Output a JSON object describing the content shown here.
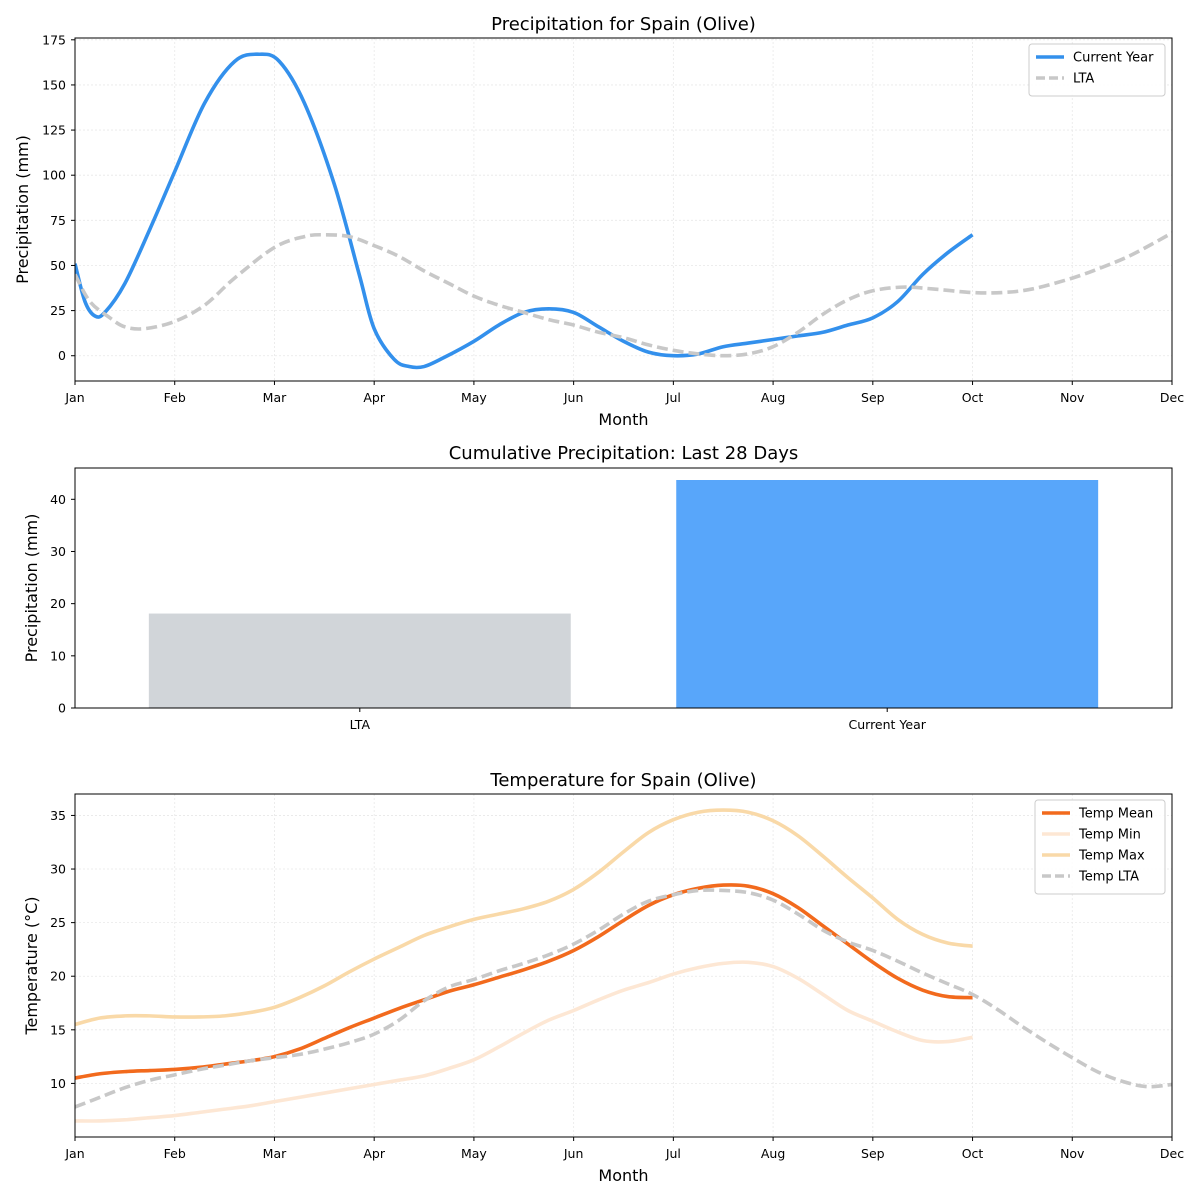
{
  "chart_data": [
    {
      "type": "line",
      "title": "Precipitation for Spain (Olive)",
      "xlabel": "Month",
      "ylabel": "Precipitation (mm)",
      "xticks": [
        "Jan",
        "Feb",
        "Mar",
        "Apr",
        "May",
        "Jun",
        "Jul",
        "Aug",
        "Sep",
        "Oct",
        "Nov",
        "Dec"
      ],
      "yticks": [
        0,
        25,
        50,
        75,
        100,
        125,
        150,
        175
      ],
      "xlim": [
        1,
        12
      ],
      "ylim": [
        -14,
        176
      ],
      "grid": true,
      "legend_position": "top-right",
      "series": [
        {
          "name": "Current Year",
          "color": "#3390ec",
          "style": "solid",
          "points": [
            [
              1,
              51
            ],
            [
              1.1,
              30
            ],
            [
              1.2,
              22
            ],
            [
              1.3,
              24
            ],
            [
              1.5,
              40
            ],
            [
              1.75,
              70
            ],
            [
              2,
              102
            ],
            [
              2.3,
              140
            ],
            [
              2.6,
              163
            ],
            [
              2.85,
              167
            ],
            [
              3.05,
              163
            ],
            [
              3.3,
              140
            ],
            [
              3.6,
              95
            ],
            [
              3.85,
              45
            ],
            [
              4,
              15
            ],
            [
              4.2,
              -2
            ],
            [
              4.35,
              -6
            ],
            [
              4.5,
              -6
            ],
            [
              4.7,
              -1
            ],
            [
              5,
              8
            ],
            [
              5.25,
              17
            ],
            [
              5.5,
              24
            ],
            [
              5.75,
              26
            ],
            [
              6,
              24
            ],
            [
              6.25,
              16
            ],
            [
              6.5,
              8
            ],
            [
              6.75,
              2
            ],
            [
              7,
              0
            ],
            [
              7.25,
              1
            ],
            [
              7.5,
              5
            ],
            [
              7.75,
              7
            ],
            [
              8,
              9
            ],
            [
              8.25,
              11
            ],
            [
              8.5,
              13
            ],
            [
              8.75,
              17
            ],
            [
              9,
              21
            ],
            [
              9.25,
              30
            ],
            [
              9.5,
              45
            ],
            [
              9.75,
              57
            ],
            [
              10,
              67
            ]
          ]
        },
        {
          "name": "LTA",
          "color": "#c8c8c8",
          "style": "dashed",
          "points": [
            [
              1,
              45
            ],
            [
              1.15,
              30
            ],
            [
              1.35,
              21
            ],
            [
              1.5,
              16
            ],
            [
              1.7,
              15
            ],
            [
              2,
              19
            ],
            [
              2.3,
              28
            ],
            [
              2.6,
              43
            ],
            [
              3,
              60
            ],
            [
              3.3,
              66
            ],
            [
              3.5,
              67
            ],
            [
              3.75,
              66
            ],
            [
              4,
              61
            ],
            [
              4.25,
              55
            ],
            [
              4.5,
              47
            ],
            [
              4.75,
              40
            ],
            [
              5,
              33
            ],
            [
              5.25,
              28
            ],
            [
              5.5,
              24
            ],
            [
              5.75,
              20
            ],
            [
              6,
              17
            ],
            [
              6.25,
              13
            ],
            [
              6.5,
              10
            ],
            [
              6.75,
              6
            ],
            [
              7,
              3
            ],
            [
              7.25,
              1
            ],
            [
              7.5,
              0
            ],
            [
              7.75,
              1
            ],
            [
              8,
              5
            ],
            [
              8.25,
              13
            ],
            [
              8.5,
              23
            ],
            [
              8.75,
              31
            ],
            [
              9,
              36
            ],
            [
              9.3,
              38
            ],
            [
              9.6,
              37
            ],
            [
              10,
              35
            ],
            [
              10.3,
              35
            ],
            [
              10.6,
              37
            ],
            [
              11,
              43
            ],
            [
              11.3,
              49
            ],
            [
              11.6,
              56
            ],
            [
              12,
              68
            ]
          ]
        }
      ]
    },
    {
      "type": "bar",
      "title": "Cumulative Precipitation: Last 28 Days",
      "xlabel": "",
      "ylabel": "Precipitation (mm)",
      "categories": [
        "LTA",
        "Current Year"
      ],
      "values": [
        18.1,
        43.7
      ],
      "colors": [
        "#d1d5d9",
        "#58a6fa"
      ],
      "yticks": [
        0,
        10,
        20,
        30,
        40
      ],
      "ylim": [
        0,
        46
      ],
      "grid": false
    },
    {
      "type": "line",
      "title": "Temperature for Spain (Olive)",
      "xlabel": "Month",
      "ylabel": "Temperature (°C)",
      "xticks": [
        "Jan",
        "Feb",
        "Mar",
        "Apr",
        "May",
        "Jun",
        "Jul",
        "Aug",
        "Sep",
        "Oct",
        "Nov",
        "Dec"
      ],
      "yticks": [
        10,
        15,
        20,
        25,
        30,
        35
      ],
      "xlim": [
        1,
        12
      ],
      "ylim": [
        5,
        37
      ],
      "grid": true,
      "legend_position": "top-right",
      "series": [
        {
          "name": "Temp Mean",
          "color": "#f26a1d",
          "style": "solid",
          "points": [
            [
              1,
              10.5
            ],
            [
              1.25,
              10.9
            ],
            [
              1.5,
              11.1
            ],
            [
              1.75,
              11.2
            ],
            [
              2,
              11.3
            ],
            [
              2.25,
              11.5
            ],
            [
              2.5,
              11.8
            ],
            [
              2.75,
              12.1
            ],
            [
              3,
              12.5
            ],
            [
              3.25,
              13.2
            ],
            [
              3.5,
              14.2
            ],
            [
              3.75,
              15.2
            ],
            [
              4,
              16.1
            ],
            [
              4.25,
              17
            ],
            [
              4.5,
              17.8
            ],
            [
              4.75,
              18.6
            ],
            [
              5,
              19.2
            ],
            [
              5.25,
              19.9
            ],
            [
              5.5,
              20.6
            ],
            [
              5.75,
              21.4
            ],
            [
              6,
              22.4
            ],
            [
              6.25,
              23.7
            ],
            [
              6.5,
              25.2
            ],
            [
              6.75,
              26.6
            ],
            [
              7,
              27.6
            ],
            [
              7.25,
              28.2
            ],
            [
              7.5,
              28.5
            ],
            [
              7.75,
              28.4
            ],
            [
              8,
              27.7
            ],
            [
              8.25,
              26.4
            ],
            [
              8.5,
              24.7
            ],
            [
              8.75,
              23
            ],
            [
              9,
              21.3
            ],
            [
              9.25,
              19.8
            ],
            [
              9.5,
              18.7
            ],
            [
              9.75,
              18.1
            ],
            [
              10,
              18
            ]
          ]
        },
        {
          "name": "Temp Min",
          "color": "#fde7d4",
          "style": "solid",
          "points": [
            [
              1,
              6.5
            ],
            [
              1.25,
              6.5
            ],
            [
              1.5,
              6.6
            ],
            [
              1.75,
              6.8
            ],
            [
              2,
              7
            ],
            [
              2.25,
              7.3
            ],
            [
              2.5,
              7.6
            ],
            [
              2.75,
              7.9
            ],
            [
              3,
              8.3
            ],
            [
              3.25,
              8.7
            ],
            [
              3.5,
              9.1
            ],
            [
              3.75,
              9.5
            ],
            [
              4,
              9.9
            ],
            [
              4.25,
              10.3
            ],
            [
              4.5,
              10.7
            ],
            [
              4.75,
              11.4
            ],
            [
              5,
              12.2
            ],
            [
              5.25,
              13.4
            ],
            [
              5.5,
              14.7
            ],
            [
              5.75,
              15.9
            ],
            [
              6,
              16.8
            ],
            [
              6.25,
              17.8
            ],
            [
              6.5,
              18.7
            ],
            [
              6.75,
              19.4
            ],
            [
              7,
              20.2
            ],
            [
              7.25,
              20.8
            ],
            [
              7.5,
              21.2
            ],
            [
              7.75,
              21.3
            ],
            [
              8,
              20.9
            ],
            [
              8.25,
              19.8
            ],
            [
              8.5,
              18.3
            ],
            [
              8.75,
              16.8
            ],
            [
              9,
              15.8
            ],
            [
              9.25,
              14.8
            ],
            [
              9.5,
              14
            ],
            [
              9.75,
              13.9
            ],
            [
              10,
              14.3
            ]
          ]
        },
        {
          "name": "Temp Max",
          "color": "#f9d9a8",
          "style": "solid",
          "points": [
            [
              1,
              15.5
            ],
            [
              1.25,
              16.1
            ],
            [
              1.5,
              16.3
            ],
            [
              1.75,
              16.3
            ],
            [
              2,
              16.2
            ],
            [
              2.25,
              16.2
            ],
            [
              2.5,
              16.3
            ],
            [
              2.75,
              16.6
            ],
            [
              3,
              17.1
            ],
            [
              3.25,
              18
            ],
            [
              3.5,
              19.1
            ],
            [
              3.75,
              20.4
            ],
            [
              4,
              21.6
            ],
            [
              4.25,
              22.7
            ],
            [
              4.5,
              23.8
            ],
            [
              4.75,
              24.6
            ],
            [
              5,
              25.3
            ],
            [
              5.25,
              25.8
            ],
            [
              5.5,
              26.3
            ],
            [
              5.75,
              27
            ],
            [
              6,
              28.1
            ],
            [
              6.25,
              29.7
            ],
            [
              6.5,
              31.6
            ],
            [
              6.75,
              33.4
            ],
            [
              7,
              34.6
            ],
            [
              7.25,
              35.3
            ],
            [
              7.5,
              35.5
            ],
            [
              7.75,
              35.3
            ],
            [
              8,
              34.5
            ],
            [
              8.25,
              33.1
            ],
            [
              8.5,
              31.2
            ],
            [
              8.75,
              29.2
            ],
            [
              9,
              27.3
            ],
            [
              9.25,
              25.3
            ],
            [
              9.5,
              23.9
            ],
            [
              9.75,
              23.1
            ],
            [
              10,
              22.8
            ]
          ]
        },
        {
          "name": "Temp LTA",
          "color": "#c8c8c8",
          "style": "dashed",
          "points": [
            [
              1,
              7.8
            ],
            [
              1.25,
              8.7
            ],
            [
              1.5,
              9.6
            ],
            [
              1.75,
              10.3
            ],
            [
              2,
              10.8
            ],
            [
              2.25,
              11.3
            ],
            [
              2.5,
              11.7
            ],
            [
              2.75,
              12.1
            ],
            [
              3,
              12.4
            ],
            [
              3.25,
              12.7
            ],
            [
              3.5,
              13.2
            ],
            [
              3.75,
              13.8
            ],
            [
              4,
              14.6
            ],
            [
              4.25,
              15.9
            ],
            [
              4.5,
              17.7
            ],
            [
              4.75,
              19
            ],
            [
              5,
              19.7
            ],
            [
              5.25,
              20.5
            ],
            [
              5.5,
              21.2
            ],
            [
              5.75,
              22
            ],
            [
              6,
              23
            ],
            [
              6.25,
              24.3
            ],
            [
              6.5,
              25.8
            ],
            [
              6.75,
              27
            ],
            [
              7,
              27.6
            ],
            [
              7.25,
              28
            ],
            [
              7.5,
              28
            ],
            [
              7.75,
              27.8
            ],
            [
              8,
              27.1
            ],
            [
              8.25,
              25.8
            ],
            [
              8.5,
              24.3
            ],
            [
              8.75,
              23.2
            ],
            [
              9,
              22.4
            ],
            [
              9.25,
              21.4
            ],
            [
              9.5,
              20.3
            ],
            [
              9.75,
              19.3
            ],
            [
              10,
              18.3
            ],
            [
              10.25,
              16.9
            ],
            [
              10.5,
              15.3
            ],
            [
              10.75,
              13.8
            ],
            [
              11,
              12.4
            ],
            [
              11.25,
              11.1
            ],
            [
              11.5,
              10.2
            ],
            [
              11.75,
              9.7
            ],
            [
              12,
              9.9
            ]
          ]
        }
      ]
    }
  ]
}
